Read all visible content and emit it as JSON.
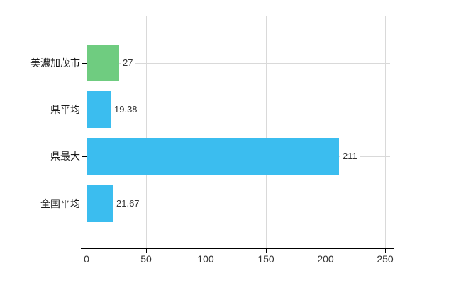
{
  "chart_data": {
    "type": "bar",
    "orientation": "horizontal",
    "title": "",
    "categories": [
      "美濃加茂市",
      "県平均",
      "県最大",
      "全国平均"
    ],
    "values": [
      27,
      19.38,
      211,
      21.67
    ],
    "value_labels": [
      "27",
      "19.38",
      "211",
      "21.67"
    ],
    "series_colors": [
      "#6fcc80",
      "#3bbdef",
      "#3bbdef",
      "#3bbdef"
    ],
    "x_ticks": [
      "0",
      "50",
      "100",
      "150",
      "200",
      "250"
    ],
    "x_tick_values": [
      0,
      50,
      100,
      150,
      200,
      250
    ],
    "xlim": [
      0,
      250
    ],
    "grid": true,
    "legend": false,
    "colors": {
      "grid": "#d9d9d9",
      "axis": "#000000",
      "category_text": "#1a1a1a",
      "value_text": "#333333",
      "background": "#ffffff",
      "bar_green": "#6fcc80",
      "bar_blue": "#3bbdef"
    }
  }
}
